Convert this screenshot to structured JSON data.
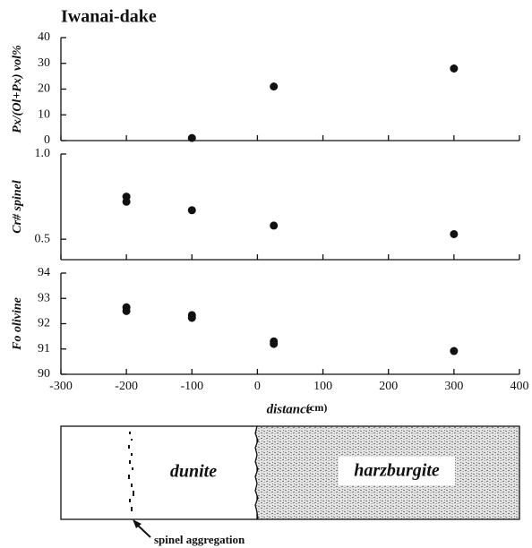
{
  "chart_data": [
    {
      "type": "scatter",
      "title": "Iwanai-dake",
      "ylabel": "Px/(Ol+Px) vol%",
      "color": "#111111",
      "x": [
        -100,
        25,
        300
      ],
      "values": [
        1,
        21,
        28
      ],
      "ylim": [
        0,
        40
      ],
      "yticks": [
        0,
        10,
        20,
        30,
        40
      ]
    },
    {
      "type": "scatter",
      "ylabel": "Cr# spinel",
      "color": "#111111",
      "x": [
        -200,
        -200,
        -100,
        25,
        300
      ],
      "values": [
        0.75,
        0.72,
        0.67,
        0.58,
        0.53
      ],
      "ylim": [
        0.38,
        1.0
      ],
      "yticks": [
        0.5,
        {
          "value": 1.0,
          "label": "1.0"
        }
      ]
    },
    {
      "type": "scatter",
      "ylabel": "Fo olivine",
      "color": "#111111",
      "x": [
        -200,
        -200,
        -100,
        -100,
        25,
        25,
        300
      ],
      "values": [
        92.65,
        92.5,
        92.34,
        92.23,
        91.3,
        91.2,
        90.92
      ],
      "ylim": [
        90,
        94
      ],
      "yticks": [
        90,
        91,
        92,
        93,
        94
      ],
      "xlim": [
        -300,
        400
      ],
      "xticks": [
        -300,
        -200,
        -100,
        0,
        100,
        200,
        300,
        400
      ],
      "xlabel": "distance",
      "xunit": "(cm)"
    }
  ],
  "diagram": {
    "left": "dunite",
    "right": "harzburgite",
    "pointer": "spinel aggregation"
  }
}
